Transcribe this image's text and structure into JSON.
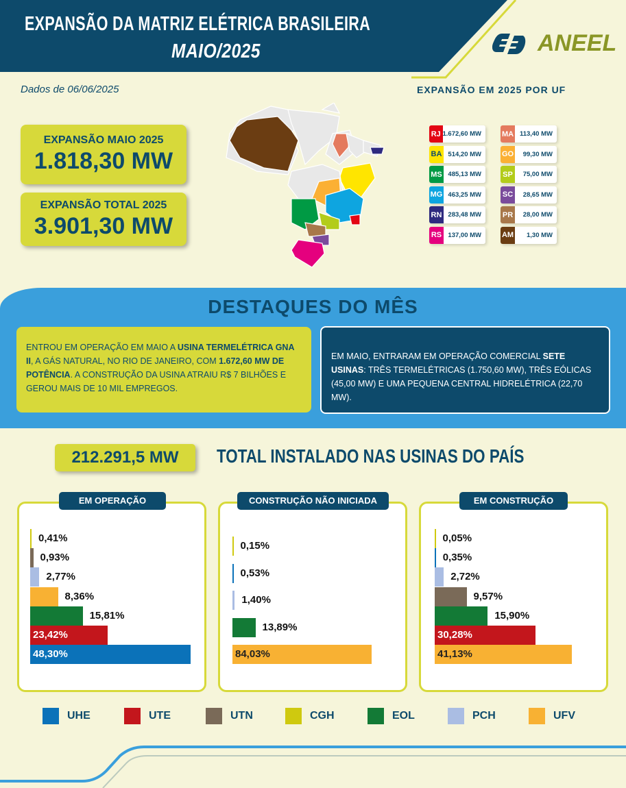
{
  "header": {
    "title": "EXPANSÃO DA MATRIZ ELÉTRICA BRASILEIRA",
    "subtitle": "MAIO/2025",
    "logo_text": "ANEEL"
  },
  "date_label": "Dados de 06/06/2025",
  "kpis": [
    {
      "label": "EXPANSÃO MAIO 2025",
      "value": "1.818,30 MW"
    },
    {
      "label": "EXPANSÃO TOTAL 2025",
      "value": "3.901,30 MW"
    }
  ],
  "uf_title": "EXPANSÃO EM 2025 POR UF",
  "uf": [
    {
      "code": "RJ",
      "value": "1.672,60 MW",
      "color": "#e30613"
    },
    {
      "code": "BA",
      "value": "514,20 MW",
      "color": "#ffe500"
    },
    {
      "code": "MS",
      "value": "485,13 MW",
      "color": "#009a44"
    },
    {
      "code": "MG",
      "value": "463,25 MW",
      "color": "#0ea5e0"
    },
    {
      "code": "RN",
      "value": "283,48 MW",
      "color": "#2e2a7f"
    },
    {
      "code": "RS",
      "value": "137,00 MW",
      "color": "#e5007e"
    },
    {
      "code": "MA",
      "value": "113,40 MW",
      "color": "#e47a5e"
    },
    {
      "code": "GO",
      "value": "99,30 MW",
      "color": "#fbb034"
    },
    {
      "code": "SP",
      "value": "75,00 MW",
      "color": "#b3cc1a"
    },
    {
      "code": "SC",
      "value": "28,65 MW",
      "color": "#7a4b9c"
    },
    {
      "code": "PR",
      "value": "28,00 MW",
      "color": "#a8784a"
    },
    {
      "code": "AM",
      "value": "1,30 MW",
      "color": "#6b3d12"
    }
  ],
  "highlights": {
    "title": "DESTAQUES DO MÊS",
    "left": {
      "t1": "ENTROU EM OPERAÇÃO EM MAIO A ",
      "b1": "USINA TERMELÉTRICA GNA II",
      "t2": ", A GÁS NATURAL, NO RIO DE JANEIRO, COM ",
      "b2": "1.672,60 MW DE POTÊNCIA",
      "t3": ". A CONSTRUÇÃO DA USINA ATRAIU R$ 7 BILHÕES E GEROU MAIS DE 10 MIL EMPREGOS."
    },
    "right": {
      "t1": "EM MAIO, ENTRARAM EM OPERAÇÃO COMERCIAL ",
      "b1": "SETE USINAS",
      "t2": ": TRÊS TERMELÉTRICAS (1.750,60 MW), TRÊS EÓLICAS (45,00 MW) E UMA PEQUENA CENTRAL HIDRELÉTRICA (22,70 MW)."
    }
  },
  "total": {
    "value": "212.291,5 MW",
    "title": "TOTAL INSTALADO NAS USINAS DO PAÍS"
  },
  "colors": {
    "UHE": "#0b72b9",
    "UTE": "#c3161c",
    "UTN": "#7a6a58",
    "CGH": "#cfc90f",
    "EOL": "#137a36",
    "PCH": "#aabde3",
    "UFV": "#f8b133"
  },
  "chart_data": [
    {
      "type": "bar",
      "orientation": "horizontal",
      "title": "EM OPERAÇÃO",
      "unit": "%",
      "categories": [
        "CGH",
        "UTN",
        "PCH",
        "UFV",
        "EOL",
        "UTE",
        "UHE"
      ],
      "values": [
        0.41,
        0.93,
        2.77,
        8.36,
        15.81,
        23.42,
        48.3
      ],
      "labels": [
        "0,41%",
        "0,93%",
        "2,77%",
        "8,36%",
        "15,81%",
        "23,42%",
        "48,30%"
      ]
    },
    {
      "type": "bar",
      "orientation": "horizontal",
      "title": "CONSTRUÇÃO NÃO INICIADA",
      "unit": "%",
      "categories": [
        "CGH",
        "UHE",
        "PCH",
        "EOL",
        "UFV"
      ],
      "values": [
        0.15,
        0.53,
        1.4,
        13.89,
        84.03
      ],
      "labels": [
        "0,15%",
        "0,53%",
        "1,40%",
        "13,89%",
        "84,03%"
      ]
    },
    {
      "type": "bar",
      "orientation": "horizontal",
      "title": "EM CONSTRUÇÃO",
      "unit": "%",
      "categories": [
        "CGH",
        "UHE",
        "PCH",
        "UTN",
        "EOL",
        "UTE",
        "UFV"
      ],
      "values": [
        0.05,
        0.35,
        2.72,
        9.57,
        15.9,
        30.28,
        41.13
      ],
      "labels": [
        "0,05%",
        "0,35%",
        "2,72%",
        "9,57%",
        "15,90%",
        "30,28%",
        "41,13%"
      ]
    }
  ],
  "legend": [
    "UHE",
    "UTE",
    "UTN",
    "CGH",
    "EOL",
    "PCH",
    "UFV"
  ]
}
